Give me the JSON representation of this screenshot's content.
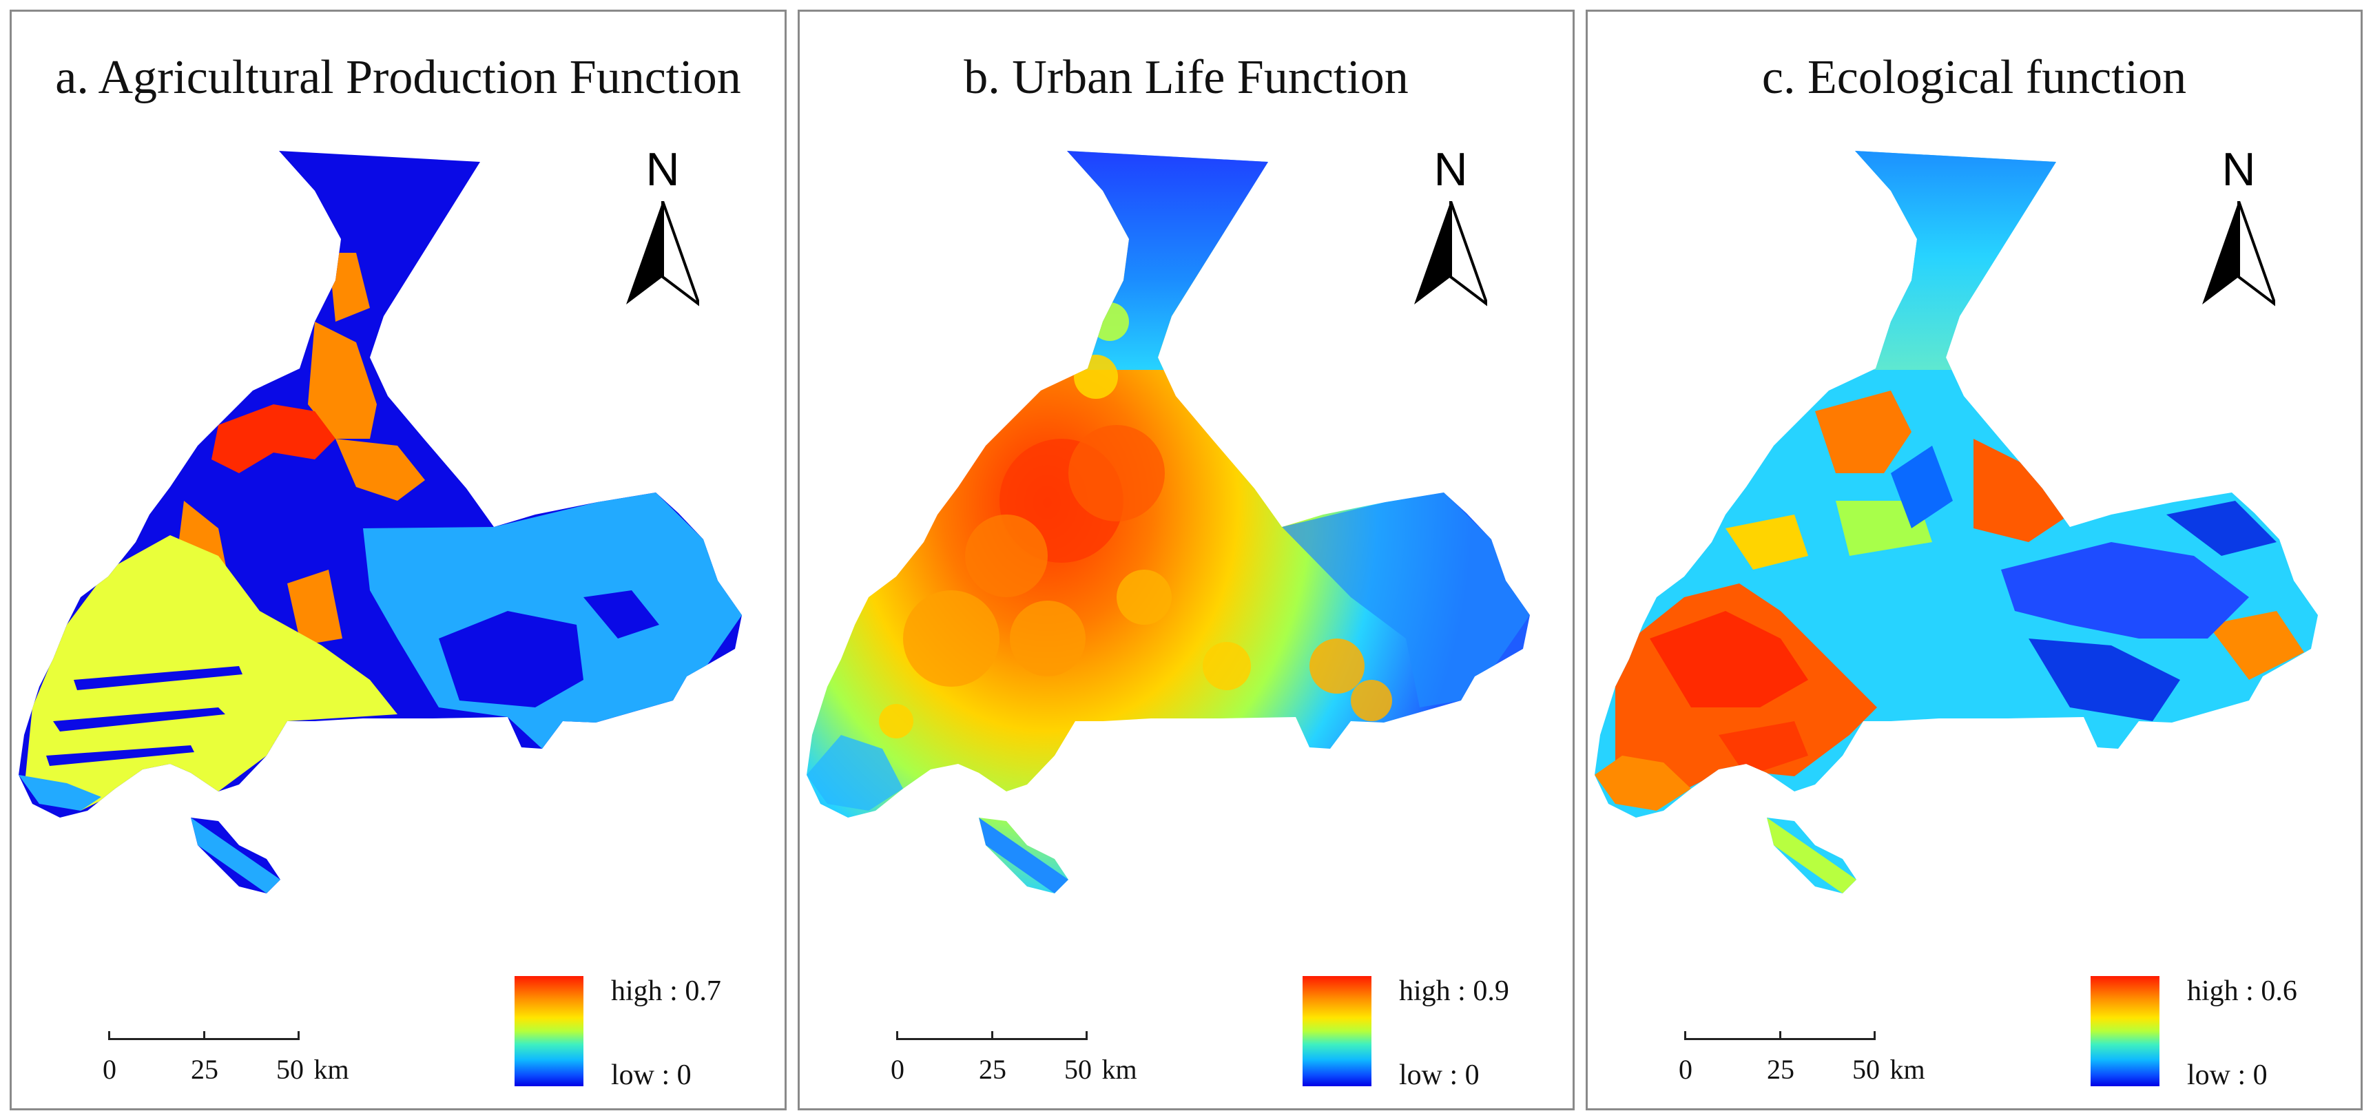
{
  "figure": {
    "panels": [
      {
        "id": "a",
        "title": "a. Agricultural Production Function",
        "legend": {
          "high": "high : 0.7",
          "low": "low : 0"
        },
        "north": "N",
        "scale": {
          "t0": "0",
          "t1": "25",
          "t2": "50",
          "unit": "km"
        }
      },
      {
        "id": "b",
        "title": "b. Urban Life Function",
        "legend": {
          "high": "high : 0.9",
          "low": "low : 0"
        },
        "north": "N",
        "scale": {
          "t0": "0",
          "t1": "25",
          "t2": "50",
          "unit": "km"
        }
      },
      {
        "id": "c",
        "title": "c. Ecological function",
        "legend": {
          "high": "high : 0.6",
          "low": "low : 0"
        },
        "north": "N",
        "scale": {
          "t0": "0",
          "t1": "25",
          "t2": "50",
          "unit": "km"
        }
      }
    ]
  },
  "colors": {
    "deep_blue": "#0a0ae6",
    "blue": "#1e5cff",
    "sky": "#22aaff",
    "cyan": "#27d3ff",
    "green": "#7df07a",
    "yellow": "#e9ff3a",
    "orange": "#ff8a00",
    "red": "#ff2a00",
    "border": "#8a8a8a"
  }
}
